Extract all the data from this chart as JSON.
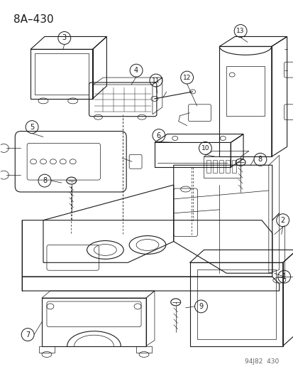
{
  "title": "8A–430",
  "footer": "94J82  430",
  "bg_color": "#ffffff",
  "line_color": "#1a1a1a",
  "title_fontsize": 11,
  "footer_fontsize": 6.5,
  "label_fontsize": 7.0
}
